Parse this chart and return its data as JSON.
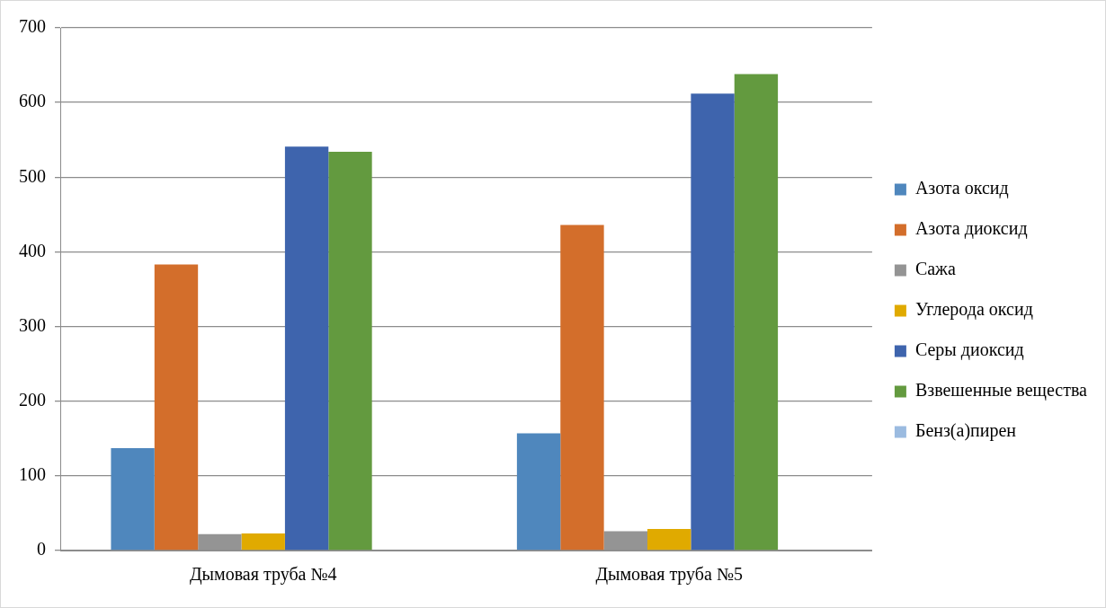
{
  "chart_data": {
    "type": "bar",
    "categories": [
      "Дымовая труба №4",
      "Дымовая труба №5"
    ],
    "series": [
      {
        "name": "Азота оксид",
        "color": "#4f87bd",
        "values": [
          137,
          157
        ]
      },
      {
        "name": "Азота диоксид",
        "color": "#d36e2b",
        "values": [
          383,
          436
        ]
      },
      {
        "name": "Сажа",
        "color": "#949494",
        "values": [
          22,
          26
        ]
      },
      {
        "name": "Углерода оксид",
        "color": "#e0aa00",
        "values": [
          23,
          29
        ]
      },
      {
        "name": "Серы диоксид",
        "color": "#3e64ad",
        "values": [
          541,
          612
        ]
      },
      {
        "name": "Взвешенные вещества",
        "color": "#639a3f",
        "values": [
          534,
          638
        ]
      },
      {
        "name": "Бенз(а)пирен",
        "color": "#9bbbe0",
        "values": [
          0,
          0
        ]
      }
    ],
    "ylim": [
      0,
      700
    ],
    "yticks": [
      0,
      100,
      200,
      300,
      400,
      500,
      600,
      700
    ],
    "grid": "y",
    "legend": "right"
  }
}
